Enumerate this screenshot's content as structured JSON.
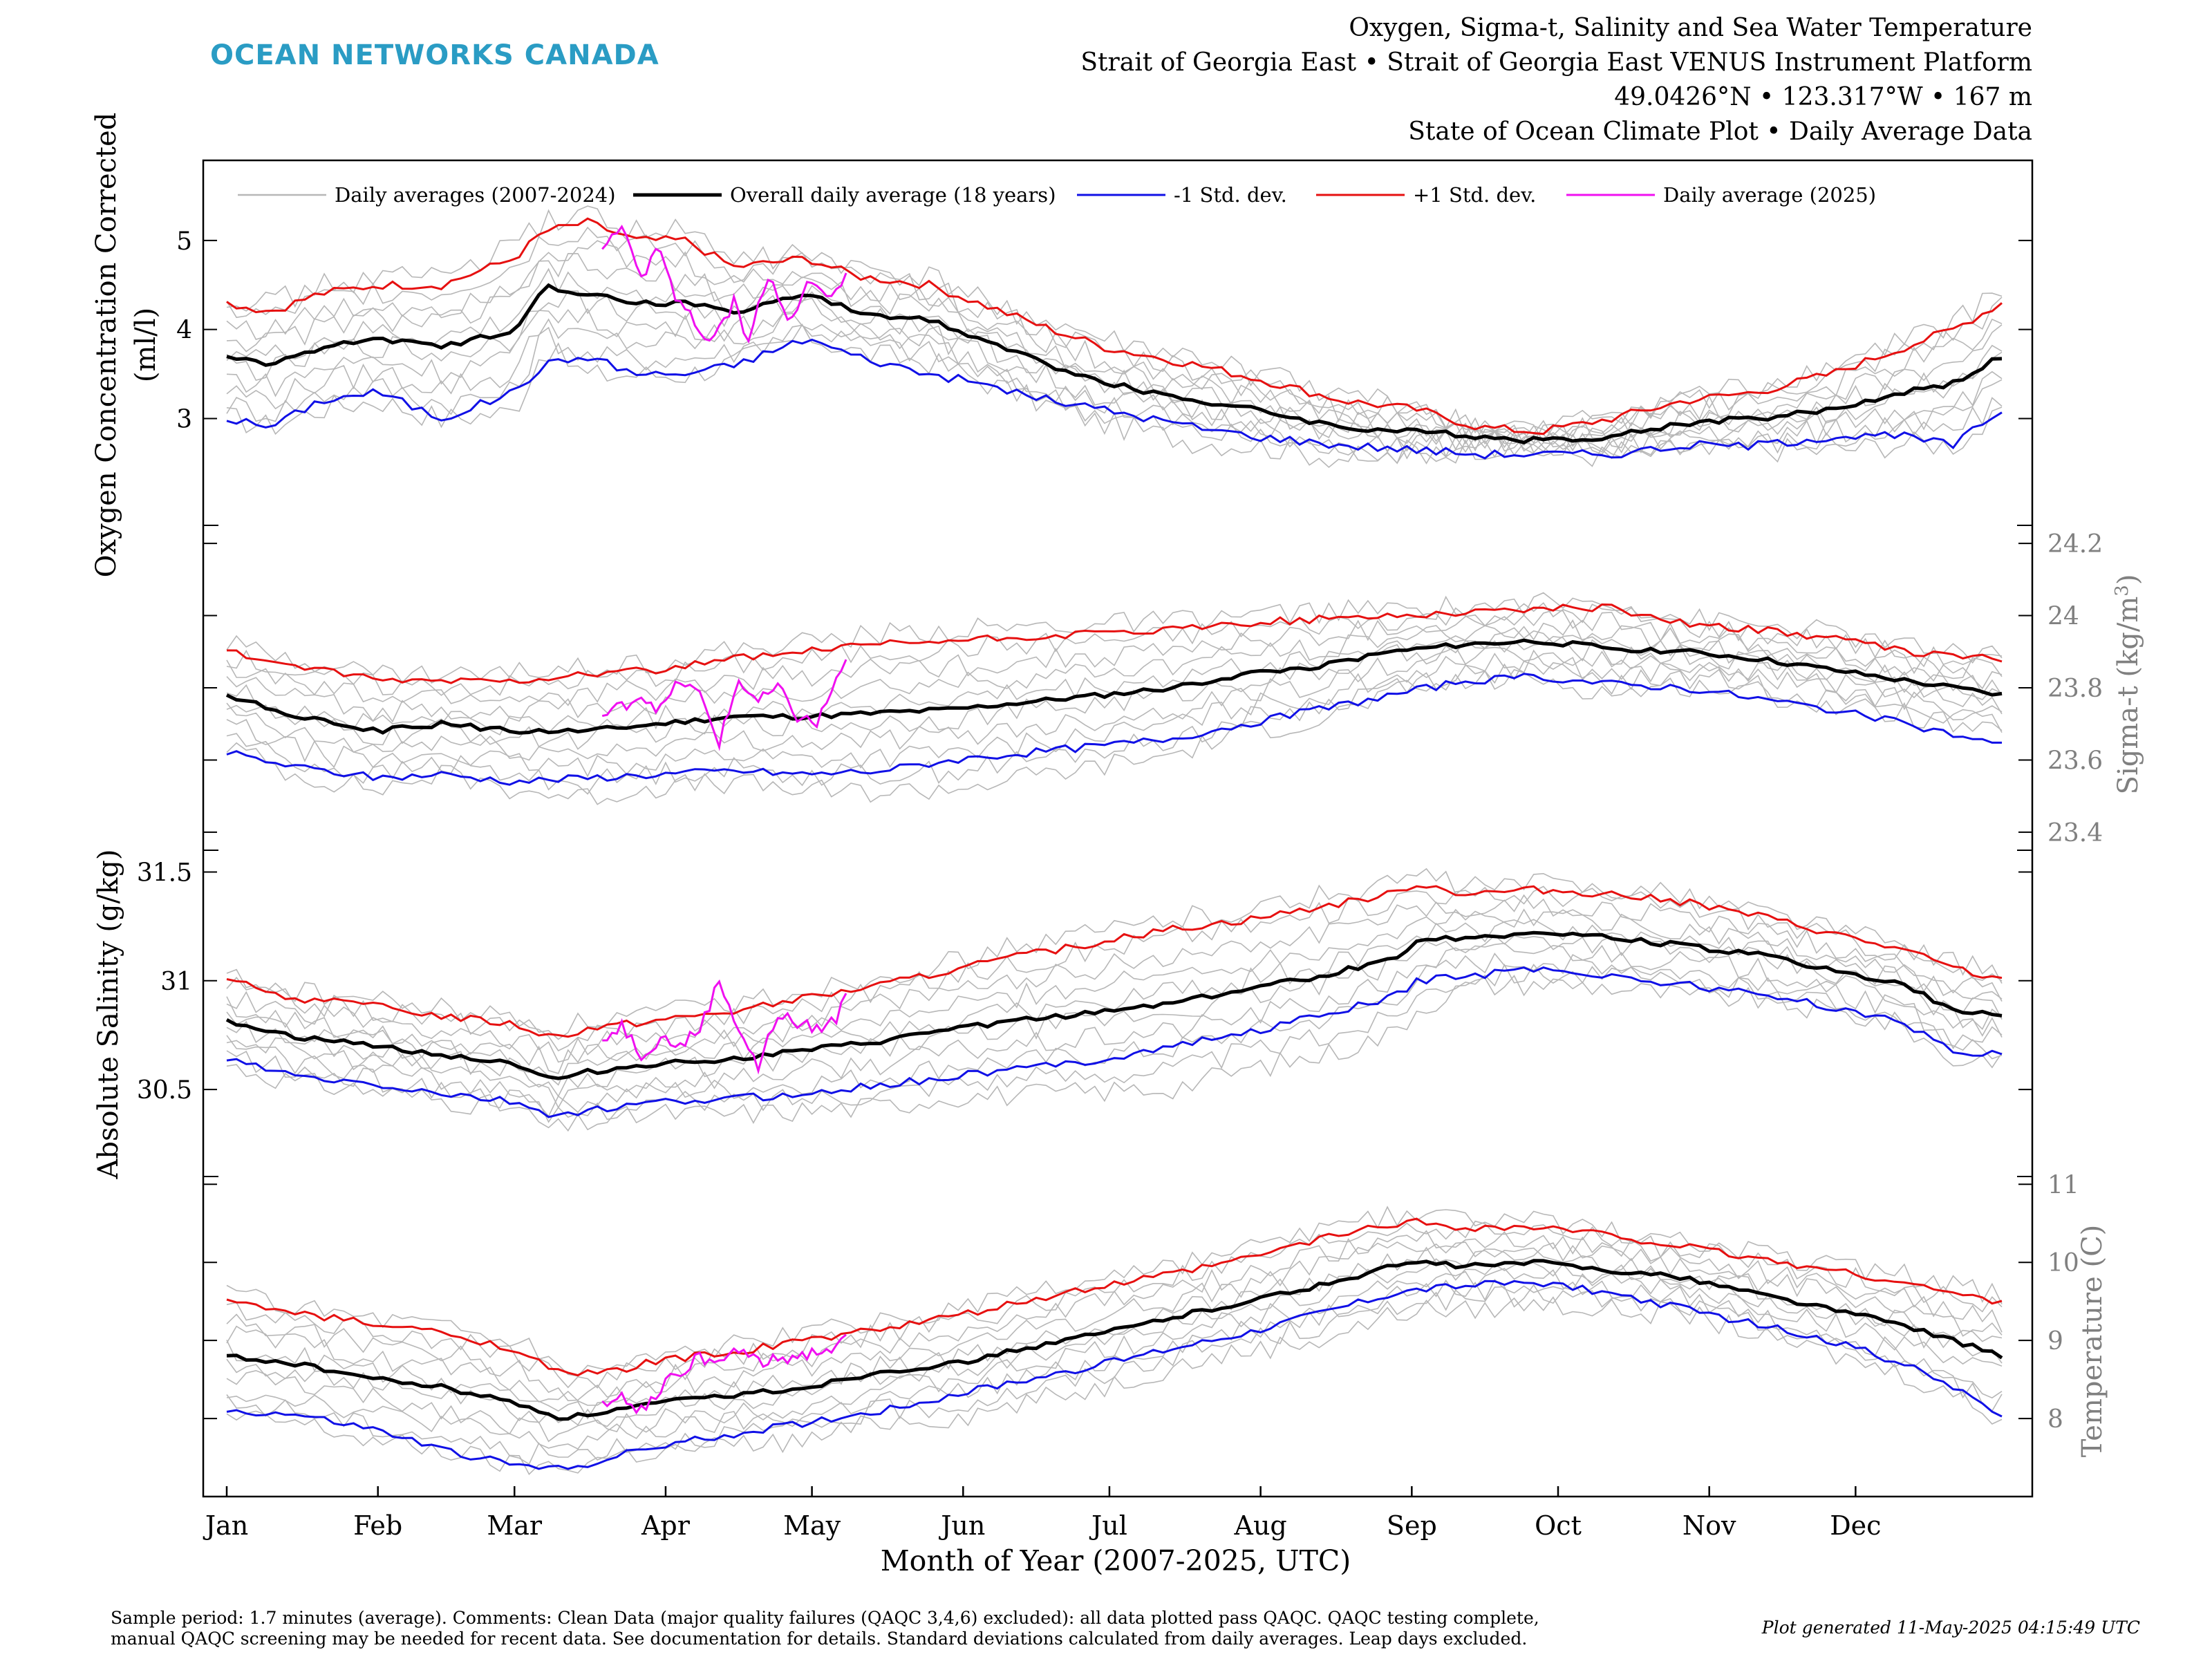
{
  "header": {
    "brand": "OCEAN NETWORKS CANADA",
    "title_lines": [
      "Oxygen, Sigma-t, Salinity and Sea Water Temperature",
      "Strait of Georgia East • Strait of Georgia East VENUS Instrument Platform",
      "49.0426°N • 123.317°W • 167 m",
      "State of Ocean Climate Plot • Daily Average Data"
    ]
  },
  "colors": {
    "brand": "#2a9cc4",
    "yearly": "#b7b7b7",
    "mean": "#000000",
    "minus_sd": "#1010e6",
    "plus_sd": "#e61010",
    "current": "#f010f0",
    "right_axis": "#808080"
  },
  "legend": {
    "entries": [
      "Daily averages (2007-2024)",
      "Overall daily average (18 years)",
      "-1 Std. dev.",
      "+1 Std. dev.",
      "Daily average (2025)"
    ]
  },
  "xaxis": {
    "label": "Month of Year (2007-2025, UTC)",
    "months": [
      "Jan",
      "Feb",
      "Mar",
      "Apr",
      "May",
      "Jun",
      "Jul",
      "Aug",
      "Sep",
      "Oct",
      "Nov",
      "Dec"
    ]
  },
  "footer": {
    "line1": "Sample period: 1.7 minutes (average). Comments: Clean Data (major quality failures (QAQC 3,4,6) excluded): all data plotted pass QAQC. QAQC testing complete,",
    "line2": "manual QAQC screening may be needed for recent data. See documentation for details. Standard deviations calculated from daily averages. Leap days excluded.",
    "generated": "Plot generated 11-May-2025 04:15:49 UTC"
  },
  "chart_data": [
    {
      "type": "line",
      "name": "oxygen",
      "ylabel_lines": [
        "Oxygen Concentration Corrected",
        "(ml/l)"
      ],
      "axis_side": "left",
      "yticks": [
        3,
        4,
        5
      ],
      "ylim": [
        1.8,
        5.9
      ],
      "x_unit": "day of year",
      "mean": {
        "x": [
          1,
          10,
          20,
          32,
          45,
          60,
          66,
          75,
          85,
          95,
          105,
          120,
          130,
          145,
          155,
          170,
          181,
          200,
          212,
          230,
          245,
          258,
          270,
          285,
          300,
          315,
          330,
          345,
          355,
          365
        ],
        "y": [
          3.7,
          3.6,
          3.8,
          3.9,
          3.8,
          4.0,
          4.5,
          4.4,
          4.3,
          4.3,
          4.2,
          4.4,
          4.2,
          4.1,
          3.9,
          3.6,
          3.4,
          3.2,
          3.1,
          2.9,
          2.85,
          2.8,
          2.75,
          2.8,
          2.95,
          3.0,
          3.1,
          3.3,
          3.4,
          3.7
        ]
      },
      "plus_sd": {
        "x": [
          1,
          10,
          20,
          32,
          45,
          60,
          66,
          75,
          85,
          95,
          105,
          120,
          130,
          145,
          155,
          170,
          181,
          200,
          212,
          230,
          245,
          258,
          270,
          285,
          300,
          315,
          330,
          345,
          355,
          365
        ],
        "y": [
          4.3,
          4.2,
          4.4,
          4.5,
          4.5,
          4.8,
          5.1,
          5.2,
          5.0,
          5.0,
          4.7,
          4.8,
          4.6,
          4.5,
          4.3,
          4.0,
          3.8,
          3.6,
          3.45,
          3.2,
          3.1,
          2.9,
          2.85,
          3.0,
          3.2,
          3.3,
          3.5,
          3.8,
          4.0,
          4.3
        ]
      },
      "minus_sd": {
        "x": [
          1,
          10,
          20,
          32,
          45,
          60,
          66,
          75,
          85,
          95,
          105,
          120,
          130,
          145,
          155,
          170,
          181,
          200,
          212,
          230,
          245,
          258,
          270,
          285,
          300,
          315,
          330,
          345,
          355,
          365
        ],
        "y": [
          3.0,
          2.9,
          3.2,
          3.3,
          3.0,
          3.3,
          3.6,
          3.7,
          3.5,
          3.5,
          3.6,
          3.9,
          3.7,
          3.5,
          3.4,
          3.2,
          3.1,
          2.9,
          2.8,
          2.7,
          2.65,
          2.6,
          2.6,
          2.6,
          2.7,
          2.7,
          2.8,
          2.8,
          2.7,
          3.1
        ]
      },
      "current": {
        "x": [
          78,
          82,
          86,
          90,
          93,
          96,
          100,
          105,
          108,
          112,
          116,
          120,
          124,
          128
        ],
        "y": [
          4.9,
          5.1,
          4.6,
          4.9,
          4.3,
          4.2,
          3.8,
          4.3,
          3.9,
          4.6,
          4.1,
          4.5,
          4.4,
          4.6
        ]
      }
    },
    {
      "type": "line",
      "name": "sigma-t",
      "ylabel": "Sigma-t (kg/m³)",
      "axis_side": "right",
      "yticks": [
        23.4,
        23.6,
        23.8,
        24.0,
        24.2
      ],
      "ytick_labels": [
        "23.4",
        "23.6",
        "23.8",
        "24",
        "24.2"
      ],
      "ylim": [
        23.35,
        24.25
      ],
      "x_unit": "day of year",
      "mean": {
        "x": [
          1,
          15,
          32,
          45,
          60,
          75,
          90,
          105,
          120,
          135,
          150,
          165,
          181,
          195,
          210,
          225,
          240,
          255,
          270,
          285,
          300,
          315,
          330,
          345,
          365
        ],
        "y": [
          23.78,
          23.72,
          23.68,
          23.7,
          23.68,
          23.68,
          23.7,
          23.72,
          23.72,
          23.73,
          23.74,
          23.76,
          23.78,
          23.8,
          23.84,
          23.86,
          23.9,
          23.92,
          23.93,
          23.91,
          23.9,
          23.88,
          23.85,
          23.82,
          23.78
        ]
      },
      "plus_sd": {
        "x": [
          1,
          15,
          32,
          45,
          60,
          75,
          90,
          105,
          120,
          135,
          150,
          165,
          181,
          195,
          210,
          225,
          240,
          255,
          270,
          285,
          300,
          315,
          330,
          345,
          365
        ],
        "y": [
          23.9,
          23.86,
          23.82,
          23.82,
          23.82,
          23.84,
          23.85,
          23.88,
          23.9,
          23.92,
          23.93,
          23.94,
          23.95,
          23.96,
          23.98,
          23.99,
          24.0,
          24.01,
          24.02,
          24.02,
          23.98,
          23.96,
          23.94,
          23.9,
          23.88
        ]
      },
      "minus_sd": {
        "x": [
          1,
          15,
          32,
          45,
          60,
          75,
          90,
          105,
          120,
          135,
          150,
          165,
          181,
          195,
          210,
          225,
          240,
          255,
          270,
          285,
          300,
          315,
          330,
          345,
          365
        ],
        "y": [
          23.62,
          23.58,
          23.55,
          23.56,
          23.54,
          23.55,
          23.56,
          23.57,
          23.56,
          23.57,
          23.6,
          23.62,
          23.64,
          23.66,
          23.7,
          23.74,
          23.78,
          23.82,
          23.83,
          23.81,
          23.8,
          23.77,
          23.74,
          23.7,
          23.64
        ]
      },
      "current": {
        "x": [
          78,
          82,
          86,
          90,
          94,
          98,
          102,
          106,
          110,
          114,
          118,
          122,
          126,
          128
        ],
        "y": [
          23.72,
          23.75,
          23.78,
          23.74,
          23.82,
          23.78,
          23.65,
          23.82,
          23.76,
          23.8,
          23.72,
          23.7,
          23.82,
          23.88
        ]
      }
    },
    {
      "type": "line",
      "name": "salinity",
      "ylabel": "Absolute Salinity (g/kg)",
      "axis_side": "left",
      "yticks": [
        30.5,
        31.0,
        31.5
      ],
      "ytick_labels": [
        "30.5",
        "31",
        "31.5"
      ],
      "ylim": [
        30.1,
        31.6
      ],
      "x_unit": "day of year",
      "mean": {
        "x": [
          1,
          15,
          32,
          45,
          60,
          68,
          75,
          90,
          105,
          120,
          135,
          150,
          165,
          181,
          195,
          210,
          225,
          240,
          245,
          255,
          270,
          285,
          300,
          315,
          330,
          345,
          355,
          365
        ],
        "y": [
          30.82,
          30.74,
          30.7,
          30.66,
          30.62,
          30.54,
          30.58,
          30.62,
          30.64,
          30.68,
          30.72,
          30.78,
          30.82,
          30.86,
          30.9,
          30.96,
          31.02,
          31.1,
          31.18,
          31.2,
          31.22,
          31.2,
          31.16,
          31.12,
          31.05,
          30.98,
          30.86,
          30.84
        ]
      },
      "plus_sd": {
        "x": [
          1,
          15,
          32,
          45,
          60,
          68,
          75,
          90,
          105,
          120,
          135,
          150,
          165,
          181,
          195,
          210,
          225,
          240,
          245,
          255,
          270,
          285,
          300,
          315,
          330,
          345,
          355,
          365
        ],
        "y": [
          31.0,
          30.92,
          30.88,
          30.84,
          30.8,
          30.74,
          30.78,
          30.82,
          30.86,
          30.92,
          30.98,
          31.05,
          31.12,
          31.18,
          31.24,
          31.28,
          31.34,
          31.4,
          31.45,
          31.4,
          31.42,
          31.4,
          31.36,
          31.3,
          31.22,
          31.14,
          31.06,
          31.0
        ]
      },
      "minus_sd": {
        "x": [
          1,
          15,
          32,
          45,
          60,
          68,
          75,
          90,
          105,
          120,
          135,
          150,
          165,
          181,
          195,
          210,
          225,
          240,
          245,
          255,
          270,
          285,
          300,
          315,
          330,
          345,
          355,
          365
        ],
        "y": [
          30.64,
          30.56,
          30.52,
          30.48,
          30.44,
          30.38,
          30.4,
          30.44,
          30.46,
          30.48,
          30.52,
          30.56,
          30.6,
          30.64,
          30.7,
          30.76,
          30.84,
          30.92,
          31.0,
          31.02,
          31.06,
          31.02,
          30.98,
          30.94,
          30.88,
          30.8,
          30.68,
          30.66
        ]
      },
      "current": {
        "x": [
          78,
          82,
          86,
          90,
          94,
          98,
          102,
          106,
          110,
          114,
          118,
          122,
          126,
          128
        ],
        "y": [
          30.72,
          30.8,
          30.66,
          30.74,
          30.7,
          30.78,
          31.0,
          30.78,
          30.6,
          30.85,
          30.8,
          30.78,
          30.82,
          30.96
        ]
      }
    },
    {
      "type": "line",
      "name": "temperature",
      "ylabel": "Temperature (C)",
      "axis_side": "right",
      "yticks": [
        8,
        9,
        10,
        11
      ],
      "ylim": [
        7.0,
        11.1
      ],
      "x_unit": "day of year",
      "mean": {
        "x": [
          1,
          15,
          32,
          45,
          60,
          70,
          80,
          90,
          105,
          120,
          135,
          150,
          165,
          181,
          195,
          210,
          225,
          240,
          245,
          255,
          270,
          285,
          300,
          315,
          330,
          345,
          355,
          365
        ],
        "y": [
          8.8,
          8.7,
          8.5,
          8.4,
          8.2,
          8.0,
          8.1,
          8.2,
          8.3,
          8.4,
          8.6,
          8.7,
          8.9,
          9.1,
          9.3,
          9.5,
          9.7,
          9.95,
          10.0,
          9.95,
          10.0,
          9.9,
          9.8,
          9.6,
          9.4,
          9.2,
          9.0,
          8.8
        ]
      },
      "plus_sd": {
        "x": [
          1,
          15,
          32,
          45,
          60,
          70,
          80,
          90,
          105,
          120,
          135,
          150,
          165,
          181,
          195,
          210,
          225,
          240,
          245,
          255,
          270,
          285,
          300,
          315,
          330,
          345,
          355,
          365
        ],
        "y": [
          9.5,
          9.35,
          9.2,
          9.1,
          8.9,
          8.55,
          8.6,
          8.75,
          8.85,
          9.0,
          9.15,
          9.3,
          9.5,
          9.7,
          9.85,
          10.05,
          10.3,
          10.5,
          10.52,
          10.45,
          10.45,
          10.35,
          10.2,
          10.05,
          9.9,
          9.75,
          9.6,
          9.5
        ]
      },
      "minus_sd": {
        "x": [
          1,
          15,
          32,
          45,
          60,
          70,
          80,
          90,
          105,
          120,
          135,
          150,
          165,
          181,
          195,
          210,
          225,
          240,
          245,
          255,
          270,
          285,
          300,
          315,
          330,
          345,
          355,
          365
        ],
        "y": [
          8.1,
          8.05,
          7.85,
          7.6,
          7.4,
          7.35,
          7.5,
          7.65,
          7.8,
          7.95,
          8.1,
          8.3,
          8.5,
          8.7,
          8.9,
          9.1,
          9.35,
          9.6,
          9.65,
          9.7,
          9.75,
          9.6,
          9.4,
          9.2,
          9.0,
          8.7,
          8.4,
          8.05
        ]
      },
      "current": {
        "x": [
          78,
          82,
          86,
          90,
          94,
          98,
          102,
          106,
          110,
          114,
          118,
          122,
          126,
          128
        ],
        "y": [
          8.2,
          8.3,
          8.1,
          8.4,
          8.6,
          8.8,
          8.7,
          8.9,
          8.7,
          8.75,
          8.8,
          8.85,
          8.9,
          9.0
        ]
      }
    }
  ]
}
